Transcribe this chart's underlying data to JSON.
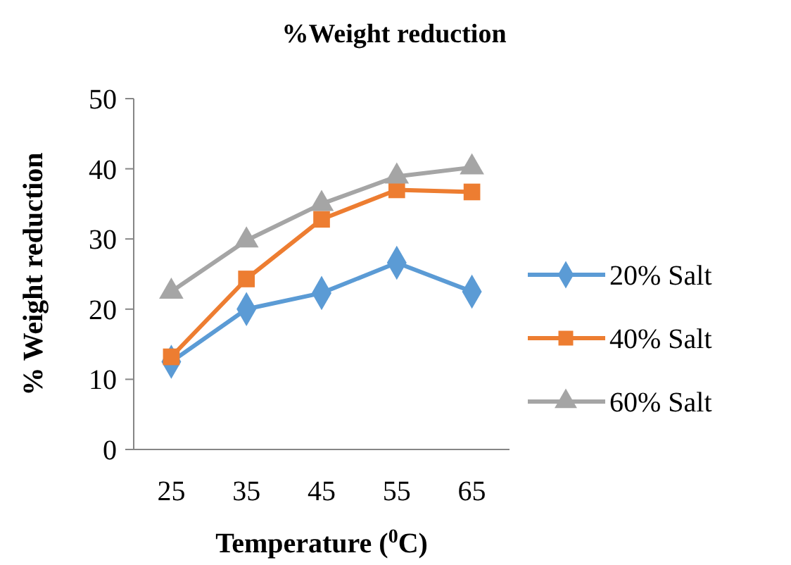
{
  "chart_data": {
    "type": "line",
    "title": "%Weight reduction",
    "xlabel": "Temperature ($^{0}$C)",
    "ylabel": "% Weight reduction",
    "categories": [
      "25",
      "35",
      "45",
      "55",
      "65"
    ],
    "series": [
      {
        "name": "20% Salt",
        "color": "#5b9bd5",
        "marker": "diamond",
        "values": [
          12.5,
          20,
          22.3,
          26.6,
          22.5
        ]
      },
      {
        "name": "40% Salt",
        "color": "#ed7d31",
        "marker": "square",
        "values": [
          13.2,
          24.3,
          32.8,
          37,
          36.7
        ]
      },
      {
        "name": "60% Salt",
        "color": "#a5a5a5",
        "marker": "triangle",
        "values": [
          22.5,
          29.8,
          35,
          38.9,
          40.2
        ]
      }
    ],
    "ylim": [
      0,
      50
    ],
    "yticks": [
      0,
      10,
      20,
      30,
      40,
      50
    ],
    "grid": false,
    "legend": "right"
  }
}
